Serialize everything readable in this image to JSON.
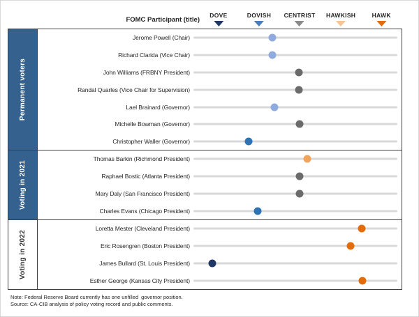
{
  "header": {
    "participant_label": "FOMC Participant (title)",
    "scale": [
      {
        "label": "DOVE",
        "color": "#1F3864",
        "pos": 49.7
      },
      {
        "label": "DOVISH",
        "color": "#4A7DBB",
        "pos": 60.8
      },
      {
        "label": "CENTRIST",
        "color": "#8A8A8A",
        "pos": 71.9
      },
      {
        "label": "HAWKISH",
        "color": "#F7C495",
        "pos": 83.2
      },
      {
        "label": "HAWK",
        "color": "#E36C09",
        "pos": 94.3
      }
    ]
  },
  "sections": [
    {
      "id": "permanent-voters",
      "label": "Permanent voters",
      "style": "blue",
      "rows": [
        {
          "name": "Jerome Powell (Chair)",
          "stance": 1.3,
          "color": "#8FAADC",
          "pos": 64.4
        },
        {
          "name": "Richard Clarida (Vice Chair)",
          "stance": 1.3,
          "color": "#8FAADC",
          "pos": 64.4
        },
        {
          "name": "John Williams (FRBNY President)",
          "stance": 2.0,
          "color": "#6B6B6B",
          "pos": 71.7
        },
        {
          "name": "Randal Quarles (Vice Chair for Supervision)",
          "stance": 2.0,
          "color": "#6B6B6B",
          "pos": 71.7
        },
        {
          "name": "Lael Brainard (Governor)",
          "stance": 1.35,
          "color": "#8FAADC",
          "pos": 65.0
        },
        {
          "name": "Michelle Bowman (Governor)",
          "stance": 2.0,
          "color": "#6B6B6B",
          "pos": 71.9
        },
        {
          "name": "Christopher Waller (Governor)",
          "stance": 0.75,
          "color": "#2E74B5",
          "pos": 57.9
        }
      ]
    },
    {
      "id": "voting-2021",
      "label": "Voting in 2021",
      "style": "blue",
      "rows": [
        {
          "name": "Thomas Barkin (Richmond President)",
          "stance": 2.2,
          "color": "#F1A35B",
          "pos": 74.0
        },
        {
          "name": "Raphael Bostic (Atlanta President)",
          "stance": 2.0,
          "color": "#6B6B6B",
          "pos": 71.9
        },
        {
          "name": "Mary Daly (San Francisco President)",
          "stance": 2.0,
          "color": "#6B6B6B",
          "pos": 71.9
        },
        {
          "name": "Charles Evans (Chicago President)",
          "stance": 0.95,
          "color": "#2E74B5",
          "pos": 60.4
        }
      ]
    },
    {
      "id": "voting-2022",
      "label": "Voting in 2022",
      "style": "plain",
      "rows": [
        {
          "name": "Loretta Mester (Cleveland President)",
          "stance": 3.55,
          "color": "#E36C09",
          "pos": 89.1
        },
        {
          "name": "Eric Rosengren (Boston President)",
          "stance": 3.25,
          "color": "#E36C09",
          "pos": 86.0
        },
        {
          "name": "James Bullard (St. Louis President)",
          "stance": -0.15,
          "color": "#1F3864",
          "pos": 48.0
        },
        {
          "name": "Esther George (Kansas City President)",
          "stance": 3.55,
          "color": "#E36C09",
          "pos": 89.3
        }
      ]
    }
  ],
  "footer": {
    "note": "Note: Federal Reserve Board currently has one unfilled  governor position.",
    "source": "Source: CA-CIB analysis of policy voting record and public comments."
  },
  "chart_data": {
    "type": "scatter",
    "title": "FOMC Participant (title) dove-hawk positioning",
    "x_axis": {
      "labels": [
        "DOVE",
        "DOVISH",
        "CENTRIST",
        "HAWKISH",
        "HAWK"
      ],
      "values": [
        0,
        1,
        2,
        3,
        4
      ]
    },
    "legend_position": "top",
    "grid": false,
    "groups": [
      {
        "group": "Permanent voters",
        "points": [
          {
            "participant": "Jerome Powell (Chair)",
            "stance": 1.3
          },
          {
            "participant": "Richard Clarida (Vice Chair)",
            "stance": 1.3
          },
          {
            "participant": "John Williams (FRBNY President)",
            "stance": 2.0
          },
          {
            "participant": "Randal Quarles (Vice Chair for Supervision)",
            "stance": 2.0
          },
          {
            "participant": "Lael Brainard (Governor)",
            "stance": 1.35
          },
          {
            "participant": "Michelle Bowman (Governor)",
            "stance": 2.0
          },
          {
            "participant": "Christopher Waller (Governor)",
            "stance": 0.75
          }
        ]
      },
      {
        "group": "Voting in 2021",
        "points": [
          {
            "participant": "Thomas Barkin (Richmond President)",
            "stance": 2.2
          },
          {
            "participant": "Raphael Bostic (Atlanta President)",
            "stance": 2.0
          },
          {
            "participant": "Mary Daly (San Francisco President)",
            "stance": 2.0
          },
          {
            "participant": "Charles Evans (Chicago President)",
            "stance": 0.95
          }
        ]
      },
      {
        "group": "Voting in 2022",
        "points": [
          {
            "participant": "Loretta Mester (Cleveland President)",
            "stance": 3.55
          },
          {
            "participant": "Eric Rosengren (Boston President)",
            "stance": 3.25
          },
          {
            "participant": "James Bullard (St. Louis President)",
            "stance": -0.15
          },
          {
            "participant": "Esther George (Kansas City President)",
            "stance": 3.55
          }
        ]
      }
    ]
  }
}
